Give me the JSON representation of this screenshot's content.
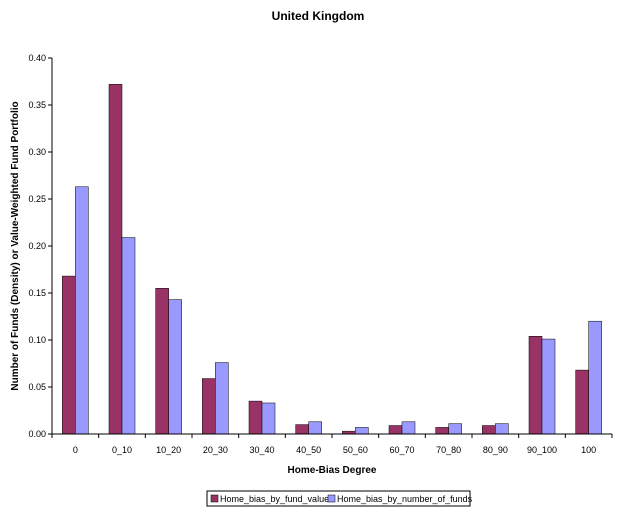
{
  "chart_data": {
    "type": "bar",
    "title": "United Kingdom",
    "xlabel": "Home-Bias Degree",
    "ylabel": "Number of Funds (Density) or Value-Weighted Fund Portfolio",
    "categories": [
      "0",
      "0_10",
      "10_20",
      "20_30",
      "30_40",
      "40_50",
      "50_60",
      "60_70",
      "70_80",
      "80_90",
      "90_100",
      "100"
    ],
    "series": [
      {
        "name": "Home_bias_by_fund_value",
        "color": "#993366",
        "values": [
          0.168,
          0.372,
          0.155,
          0.059,
          0.035,
          0.01,
          0.003,
          0.009,
          0.007,
          0.009,
          0.104,
          0.068
        ]
      },
      {
        "name": "Home_bias_by_number_of_funds",
        "color": "#9999ff",
        "values": [
          0.263,
          0.209,
          0.143,
          0.076,
          0.033,
          0.013,
          0.007,
          0.013,
          0.011,
          0.011,
          0.101,
          0.12
        ]
      }
    ],
    "ylim": [
      0,
      0.4
    ],
    "yticks": [
      "0.00",
      "0.05",
      "0.10",
      "0.15",
      "0.20",
      "0.25",
      "0.30",
      "0.35",
      "0.40"
    ],
    "grid": false,
    "legend": "bottom-center"
  }
}
